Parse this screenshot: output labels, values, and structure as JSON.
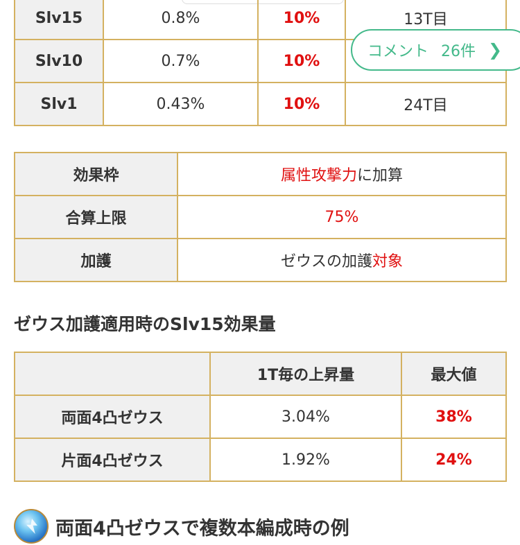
{
  "table_skill_levels": {
    "rows": [
      {
        "level": "Slv15",
        "per_turn": "0.8%",
        "max": "10%",
        "turn": "13T目"
      },
      {
        "level": "Slv10",
        "per_turn": "0.7%",
        "max": "10%",
        "turn": ""
      },
      {
        "level": "Slv1",
        "per_turn": "0.43%",
        "max": "10%",
        "turn": "24T目"
      }
    ]
  },
  "comment_button": {
    "label": "コメント",
    "count": "26件",
    "chevron_icon": "chevron-right-icon"
  },
  "table_effect": {
    "rows": [
      {
        "label": "効果枠",
        "value_red": "属性攻撃力",
        "value_plain": "に加算"
      },
      {
        "label": "合算上限",
        "value_red": "75%",
        "value_plain": ""
      },
      {
        "label": "加護",
        "value_plain": "ゼウスの加護",
        "value_red": "対象"
      }
    ]
  },
  "section_title": "ゼウス加護適用時のSlv15効果量",
  "table_zeus": {
    "headers": [
      "",
      "1T毎の上昇量",
      "最大値"
    ],
    "rows": [
      {
        "label": "両面4凸ゼウス",
        "per_turn": "3.04%",
        "max": "38%"
      },
      {
        "label": "片面4凸ゼウス",
        "per_turn": "1.92%",
        "max": "24%"
      }
    ]
  },
  "footer_heading": {
    "text": "両面4凸ゼウスで複数本編成時の例",
    "icon": "water-orb-icon"
  },
  "colors": {
    "border": "#d4b160",
    "header_bg": "#f0f0f0",
    "accent_red": "#e01010",
    "comment_green": "#43b98a"
  }
}
